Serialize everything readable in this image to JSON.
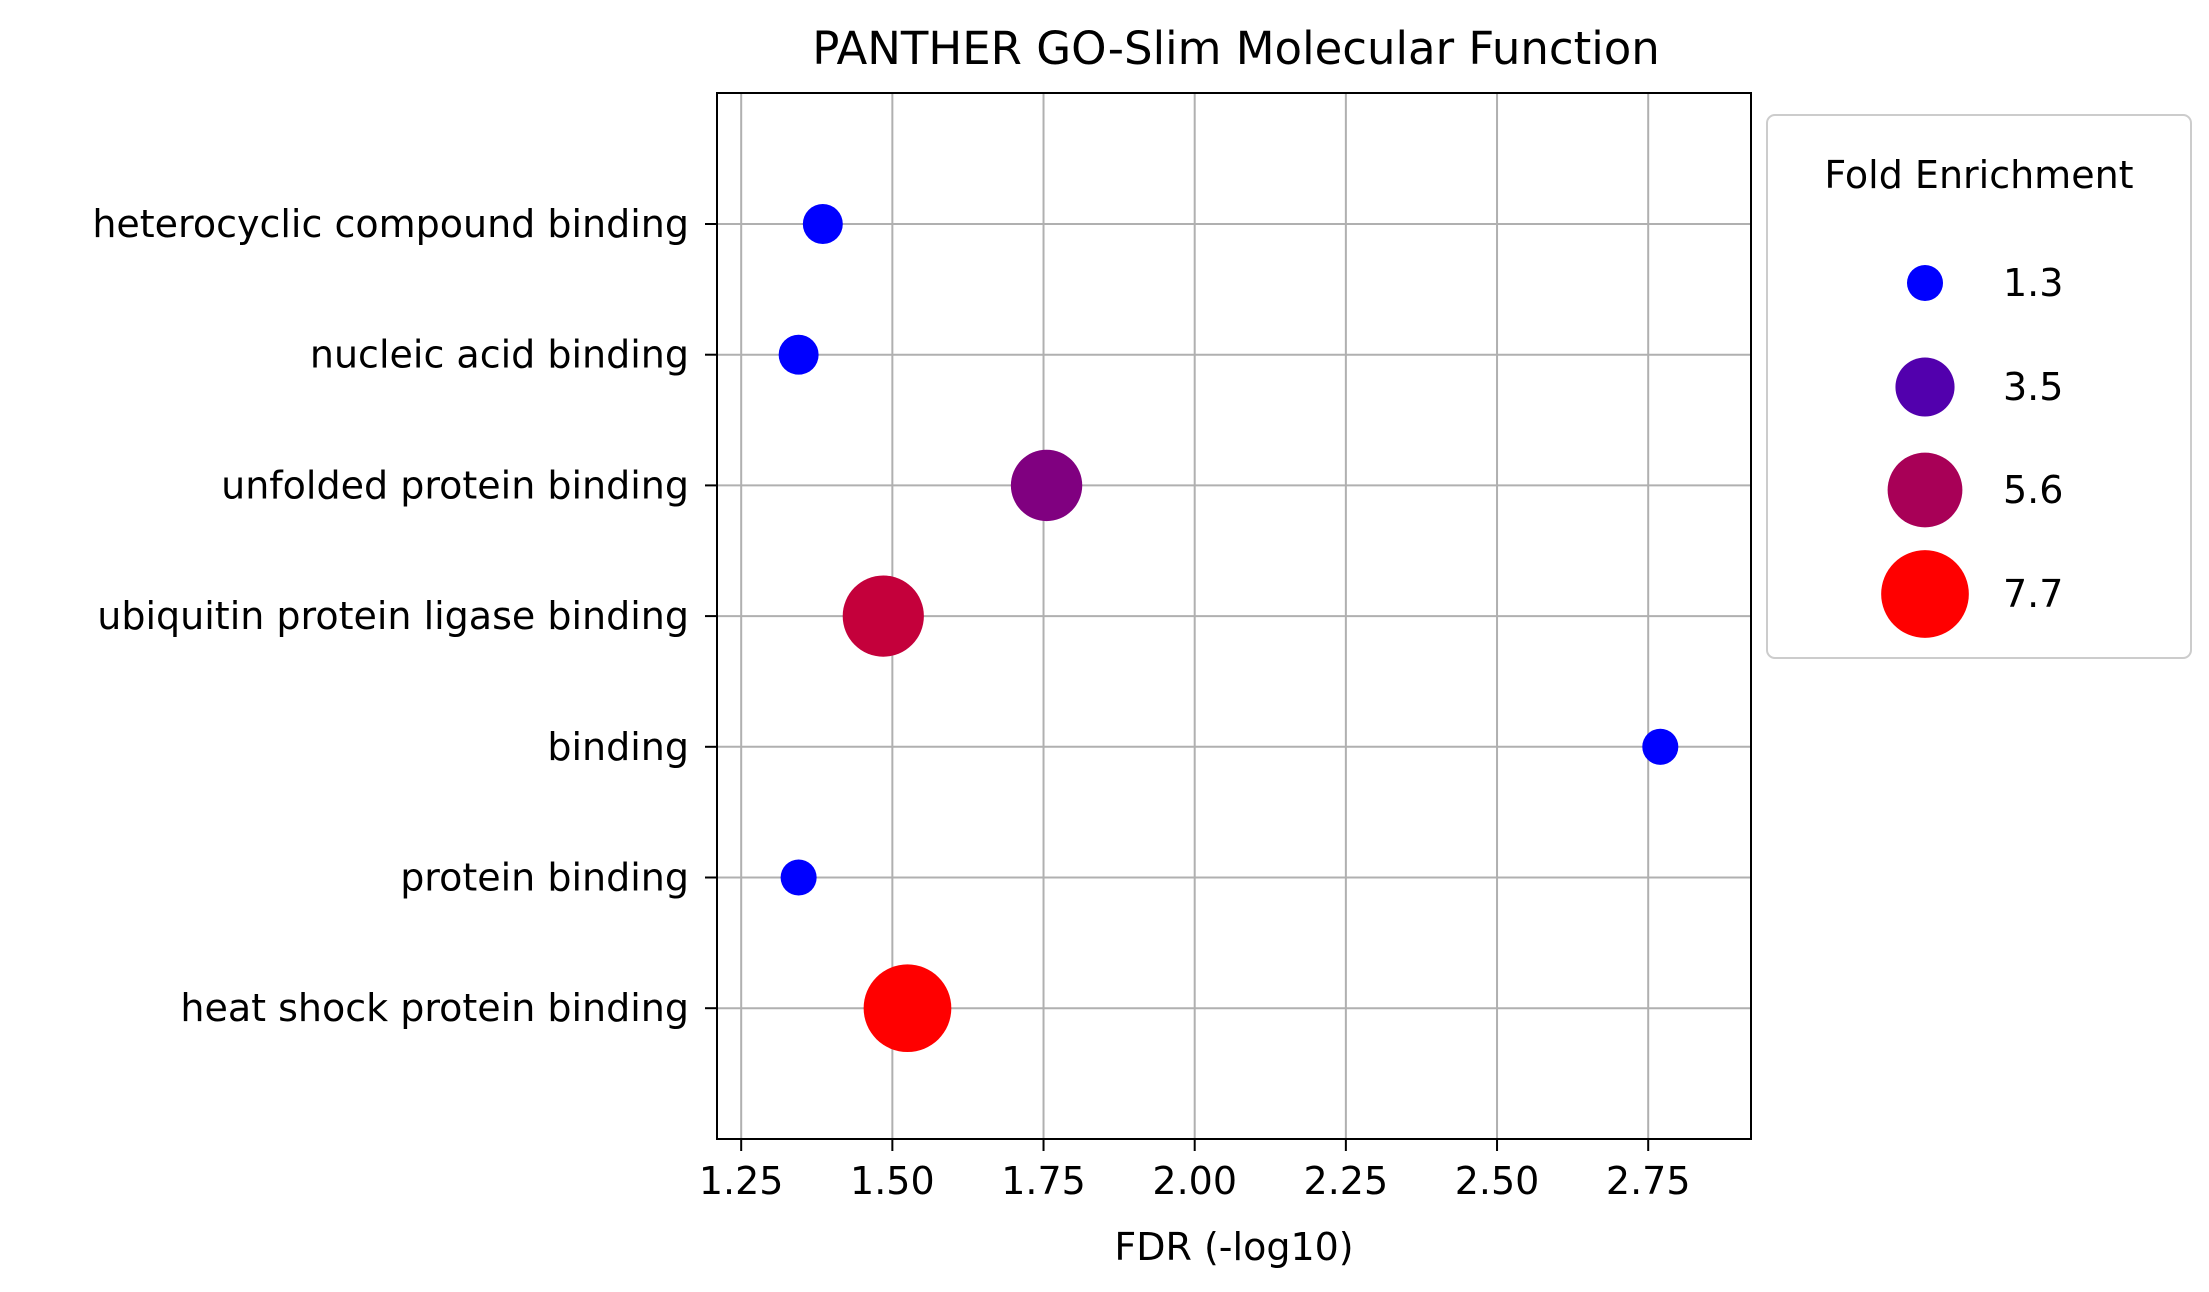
{
  "chart_data": {
    "type": "scatter",
    "title": "PANTHER GO-Slim Molecular Function",
    "xlabel": "FDR (-log10)",
    "ylabel": "",
    "xlim": [
      1.21,
      2.92
    ],
    "xticks": [
      "1.25",
      "1.50",
      "1.75",
      "2.00",
      "2.25",
      "2.50",
      "2.75"
    ],
    "grid": true,
    "categories": [
      "heterocyclic compound binding",
      "nucleic acid binding",
      "unfolded protein binding",
      "ubiquitin protein ligase binding",
      "binding",
      "protein binding",
      "heat shock protein binding"
    ],
    "points": [
      {
        "category": "heterocyclic compound binding",
        "x": 1.385,
        "fold_enrichment": 1.6,
        "color": "#0000ff"
      },
      {
        "category": "nucleic acid binding",
        "x": 1.345,
        "fold_enrichment": 1.6,
        "color": "#0000ff"
      },
      {
        "category": "unfolded protein binding",
        "x": 1.755,
        "fold_enrichment": 5.1,
        "color": "#800080"
      },
      {
        "category": "ubiquitin protein ligase binding",
        "x": 1.485,
        "fold_enrichment": 6.6,
        "color": "#c4003b"
      },
      {
        "category": "binding",
        "x": 2.77,
        "fold_enrichment": 1.3,
        "color": "#0000ff"
      },
      {
        "category": "protein binding",
        "x": 1.345,
        "fold_enrichment": 1.3,
        "color": "#0000ff"
      },
      {
        "category": "heat shock protein binding",
        "x": 1.525,
        "fold_enrichment": 7.7,
        "color": "#ff0000"
      }
    ],
    "legend": {
      "title": "Fold Enrichment",
      "placement": "outside-right",
      "entries": [
        {
          "label": "1.3",
          "value": 1.3,
          "color": "#0000ff"
        },
        {
          "label": "3.5",
          "value": 3.5,
          "color": "#5200ad"
        },
        {
          "label": "5.6",
          "value": 5.6,
          "color": "#a80057"
        },
        {
          "label": "7.7",
          "value": 7.7,
          "color": "#ff0000"
        }
      ]
    }
  }
}
